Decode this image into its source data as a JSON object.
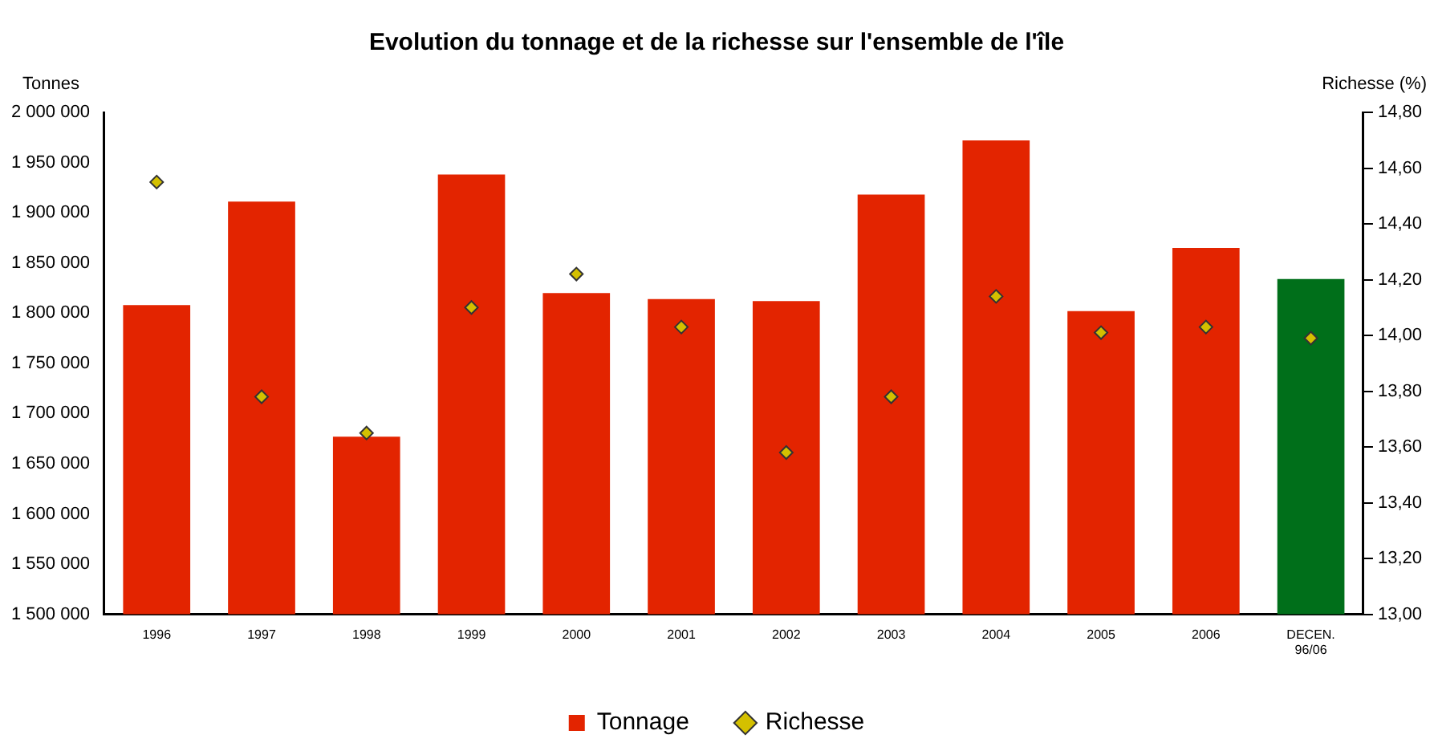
{
  "chart_data": {
    "type": "bar",
    "title": "Evolution du tonnage et de la richesse sur l'ensemble de l'île",
    "ylabel": "Tonnes",
    "y2label": "Richesse (%)",
    "categories": [
      "1996",
      "1997",
      "1998",
      "1999",
      "2000",
      "2001",
      "2002",
      "2003",
      "2004",
      "2005",
      "2006",
      "DECEN.\n96/06"
    ],
    "series": [
      {
        "name": "Tonnage",
        "color": "#e32400",
        "colors": [
          "#e32400",
          "#e32400",
          "#e32400",
          "#e32400",
          "#e32400",
          "#e32400",
          "#e32400",
          "#e32400",
          "#e32400",
          "#e32400",
          "#e32400",
          "#006f1a"
        ],
        "values": [
          1808000,
          1911000,
          1677000,
          1938000,
          1820000,
          1814000,
          1812000,
          1918000,
          1972000,
          1802000,
          1865000,
          1834000
        ]
      },
      {
        "name": "Richesse",
        "type": "scatter",
        "axis": "y2",
        "color": "#d4c000",
        "marker": "diamond",
        "values": [
          14.55,
          13.78,
          13.65,
          14.1,
          14.22,
          14.03,
          13.58,
          13.78,
          14.14,
          14.01,
          14.03,
          13.99
        ]
      }
    ],
    "ylim": [
      1500000,
      2000000
    ],
    "yticks": [
      {
        "value": 1500000,
        "label": "1 500 000"
      },
      {
        "value": 1550000,
        "label": "1 550 000"
      },
      {
        "value": 1600000,
        "label": "1 600 000"
      },
      {
        "value": 1650000,
        "label": "1 650 000"
      },
      {
        "value": 1700000,
        "label": "1 700 000"
      },
      {
        "value": 1750000,
        "label": "1 750 000"
      },
      {
        "value": 1800000,
        "label": "1 800 000"
      },
      {
        "value": 1850000,
        "label": "1 850 000"
      },
      {
        "value": 1900000,
        "label": "1 900 000"
      },
      {
        "value": 1950000,
        "label": "1 950 000"
      },
      {
        "value": 2000000,
        "label": "2 000 000"
      }
    ],
    "y2lim": [
      13,
      14.8
    ],
    "y2ticks": [
      {
        "value": 13,
        "label": "13,00"
      },
      {
        "value": 13.2,
        "label": "13,20"
      },
      {
        "value": 13.4,
        "label": "13,40"
      },
      {
        "value": 13.6,
        "label": "13,60"
      },
      {
        "value": 13.8,
        "label": "13,80"
      },
      {
        "value": 14,
        "label": "14,00"
      },
      {
        "value": 14.2,
        "label": "14,20"
      },
      {
        "value": 14.4,
        "label": "14,40"
      },
      {
        "value": 14.6,
        "label": "14,60"
      },
      {
        "value": 14.8,
        "label": "14,80"
      }
    ],
    "grid": false,
    "legend": "bottom"
  }
}
